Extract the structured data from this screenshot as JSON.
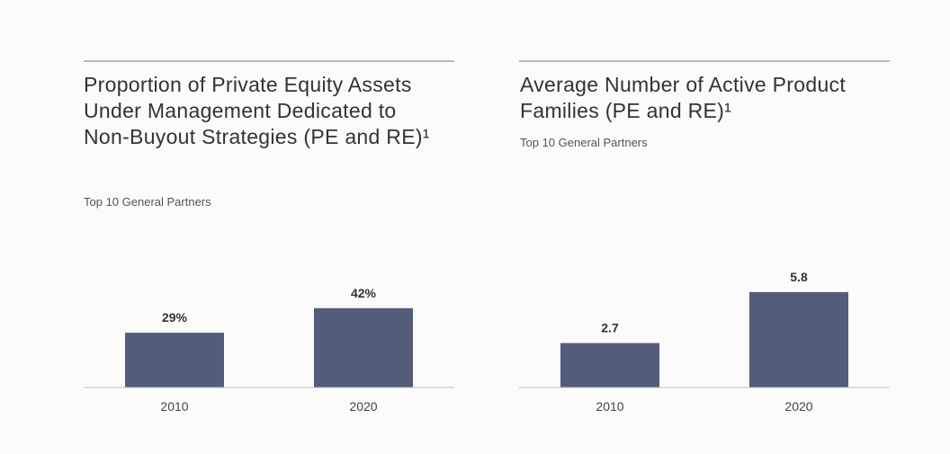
{
  "chart_data": [
    {
      "type": "bar",
      "title": "Proportion of Private Equity Assets Under Management Dedicated to Non-Buyout Strategies (PE and RE)¹",
      "subtitle": "Top 10 General Partners",
      "categories": [
        "2010",
        "2020"
      ],
      "values": [
        29,
        42
      ],
      "value_labels": [
        "29%",
        "42%"
      ],
      "color": "#545c7a"
    },
    {
      "type": "bar",
      "title": "Average Number of Active Product Families (PE and RE)¹",
      "subtitle": "Top 10 General Partners",
      "categories": [
        "2010",
        "2020"
      ],
      "values": [
        2.7,
        5.8
      ],
      "color": "#545c7a"
    }
  ]
}
